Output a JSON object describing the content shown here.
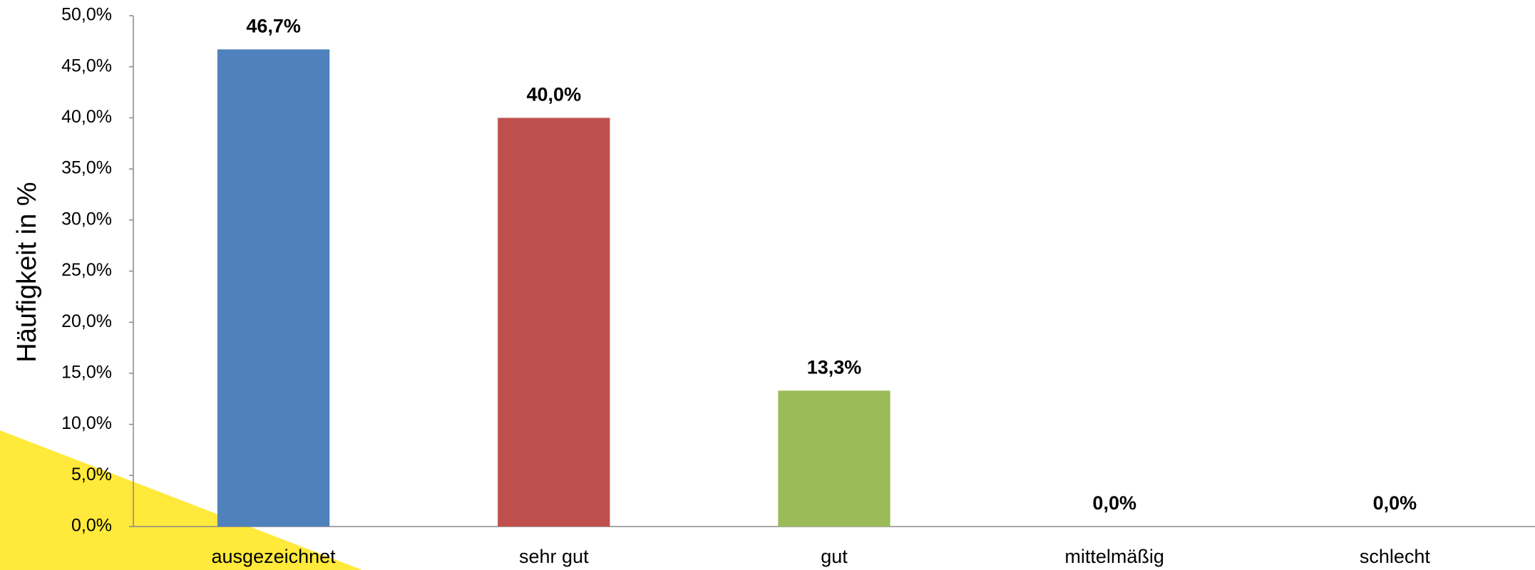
{
  "chart_data": {
    "type": "bar",
    "y_label": "Häufigkeit in %",
    "categories": [
      "ausgezeichnet",
      "sehr gut",
      "gut",
      "mittelmäßig",
      "schlecht"
    ],
    "values": [
      46.7,
      40.0,
      13.3,
      0.0,
      0.0
    ],
    "value_labels": [
      "46,7%",
      "40,0%",
      "13,3%",
      "0,0%",
      "0,0%"
    ],
    "colors": [
      "#4f81bd",
      "#c0504d",
      "#9bbb59",
      "#8064a2",
      "#4bacc6"
    ],
    "ylim": [
      0,
      50
    ],
    "yticks": [
      {
        "value": 0,
        "label": "0,0%"
      },
      {
        "value": 5,
        "label": "5,0%"
      },
      {
        "value": 10,
        "label": "10,0%"
      },
      {
        "value": 15,
        "label": "15,0%"
      },
      {
        "value": 20,
        "label": "20,0%"
      },
      {
        "value": 25,
        "label": "25,0%"
      },
      {
        "value": 30,
        "label": "30,0%"
      },
      {
        "value": 35,
        "label": "35,0%"
      },
      {
        "value": 40,
        "label": "40,0%"
      },
      {
        "value": 45,
        "label": "45,0%"
      },
      {
        "value": 50,
        "label": "50,0%"
      }
    ],
    "grid": false
  }
}
